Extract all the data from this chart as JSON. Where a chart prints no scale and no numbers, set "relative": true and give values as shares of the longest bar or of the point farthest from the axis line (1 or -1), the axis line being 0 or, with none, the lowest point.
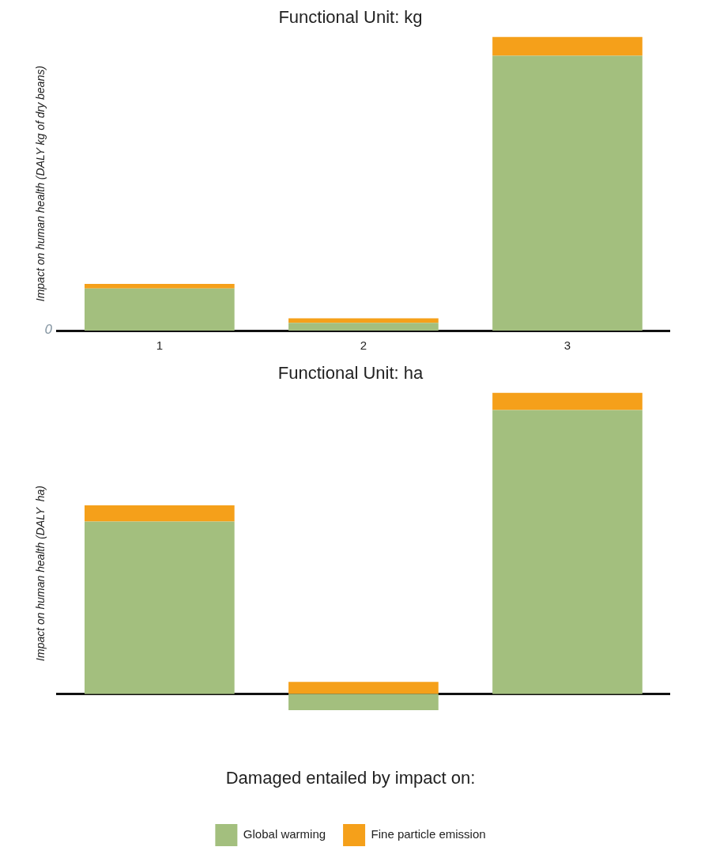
{
  "chart_data": [
    {
      "type": "bar",
      "title": "Functional Unit: kg",
      "ylabel": "Impact on human health (DALY kg of dry beans)",
      "categories": [
        "1",
        "2",
        "3"
      ],
      "stacked": true,
      "relative": true,
      "legend": false,
      "annotations": [
        "0"
      ],
      "series": [
        {
          "color": "#a3bf7e",
          "values": [
            0.143,
            0.026,
            0.935
          ]
        },
        {
          "color": "#f5a01a",
          "values": [
            0.016,
            0.016,
            0.065
          ]
        }
      ]
    },
    {
      "type": "bar",
      "title": "Functional Unit: ha",
      "ylabel": "Impact on human health (DALY  ha)",
      "categories": [
        null,
        null,
        null
      ],
      "stacked": true,
      "relative": true,
      "legend": "bottom",
      "legend_title": "Damaged entailed by impact on:",
      "series": [
        {
          "name": "Global warming",
          "color": "#a3bf7e",
          "values": [
            0.572,
            -0.054,
            0.942
          ]
        },
        {
          "name": "Fine particle emission",
          "color": "#f5a01a",
          "values": [
            0.054,
            0.04,
            0.058
          ]
        }
      ]
    }
  ]
}
